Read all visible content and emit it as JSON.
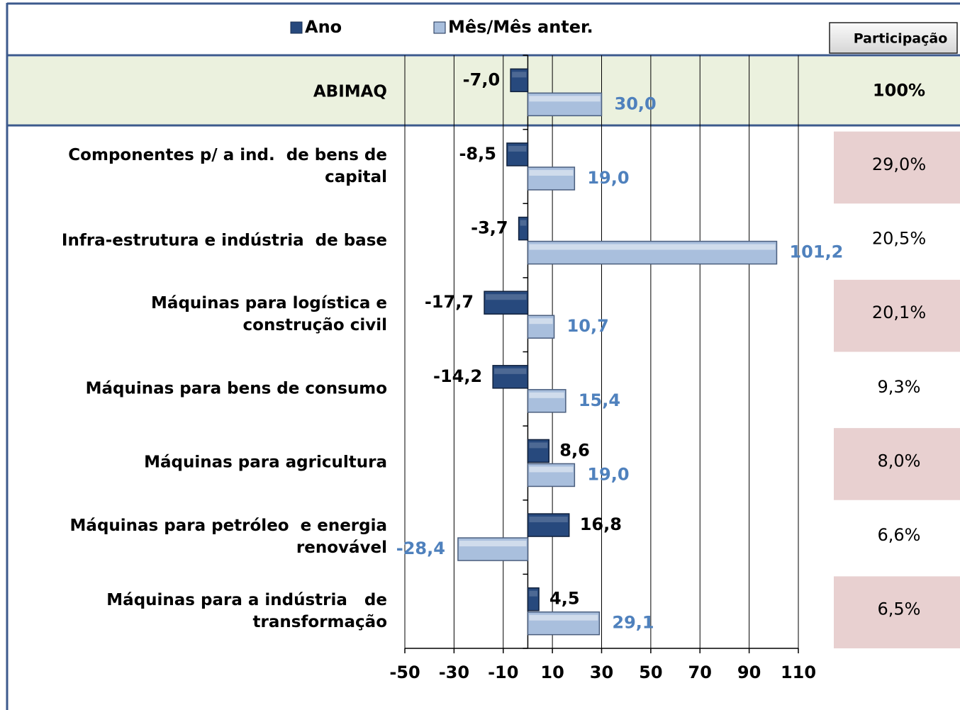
{
  "chart_data": {
    "type": "hbar",
    "categories": [
      "ABIMAQ",
      "Componentes p/ a ind.  de bens de\ncapital",
      "Infra-estrutura e indústria  de base",
      "Máquinas para logística e\nconstrução civil",
      "Máquinas para bens de consumo",
      "Máquinas para agricultura",
      "Máquinas para petróleo  e energia\nrenovável",
      "Máquinas para a indústria   de\ntransformação"
    ],
    "series": [
      {
        "name": "Ano",
        "color": "#27497d",
        "label_color": "#000000",
        "values": [
          -7.0,
          -8.5,
          -3.7,
          -17.7,
          -14.2,
          8.6,
          16.8,
          4.5
        ],
        "value_labels": [
          "-7,0",
          "-8,5",
          "-3,7",
          "-17,7",
          "-14,2",
          "8,6",
          "16,8",
          "4,5"
        ]
      },
      {
        "name": "Mês/Mês anter.",
        "color": "#a9bfdd",
        "label_color": "#4f81bd",
        "values": [
          30.0,
          19.0,
          101.2,
          10.7,
          15.4,
          19.0,
          -28.4,
          29.1
        ],
        "value_labels": [
          "30,0",
          "19,0",
          "101,2",
          "10,7",
          "15,4",
          "19,0",
          "-28,4",
          "29,1"
        ]
      }
    ],
    "xlim": [
      -50,
      110
    ],
    "xticks": [
      -50,
      -30,
      -10,
      10,
      30,
      50,
      70,
      90,
      110
    ],
    "grid": true,
    "legend": "top",
    "share_title": "Participação",
    "shares": [
      "100%",
      "29,0%",
      "20,5%",
      "20,1%",
      "9,3%",
      "8,0%",
      "6,6%",
      "6,5%"
    ]
  }
}
